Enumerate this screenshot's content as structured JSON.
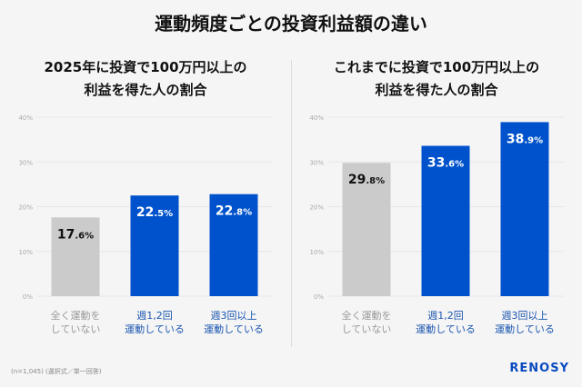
{
  "title": "運動頻度ごとの投資利益額の違い",
  "colors": {
    "blue": "#0052cc",
    "gray": "#cbcbcb",
    "blue_label": "#1a55b0",
    "gray_label": "#999999"
  },
  "chart_data": [
    {
      "type": "bar",
      "title": [
        "2025年に投資で100万円以上の",
        "利益を得た人の割合"
      ],
      "categories": [
        [
          "全く運動を",
          "していない"
        ],
        [
          "週1,2回",
          "運動している"
        ],
        [
          "週3回以上",
          "運動している"
        ]
      ],
      "values": [
        17.6,
        22.5,
        22.8
      ],
      "bar_colors": [
        "gray",
        "blue",
        "blue"
      ],
      "yticks": [
        "0%",
        "10%",
        "20%",
        "30%",
        "40%"
      ],
      "ylim": [
        0,
        40
      ],
      "grid": true
    },
    {
      "type": "bar",
      "title": [
        "これまでに投資で100万円以上の",
        "利益を得た人の割合"
      ],
      "categories": [
        [
          "全く運動を",
          "していない"
        ],
        [
          "週1,2回",
          "運動している"
        ],
        [
          "週3回以上",
          "運動している"
        ]
      ],
      "values": [
        29.8,
        33.6,
        38.9
      ],
      "bar_colors": [
        "gray",
        "blue",
        "blue"
      ],
      "yticks": [
        "0%",
        "10%",
        "20%",
        "30%",
        "40%"
      ],
      "ylim": [
        0,
        40
      ],
      "grid": true
    }
  ],
  "footnote": "(n=1,045) (選択式／単一回答)",
  "logo": "RENOSY"
}
